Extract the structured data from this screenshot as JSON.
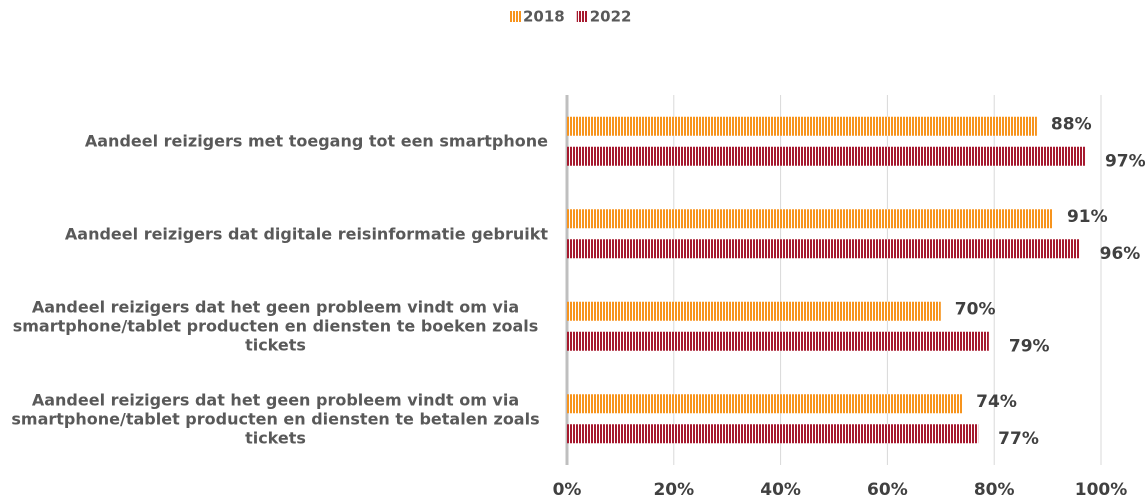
{
  "chart_data": {
    "type": "bar",
    "orientation": "horizontal",
    "categories": [
      "Aandeel reizigers met toegang tot een smartphone",
      "Aandeel reizigers dat digitale reisinformatie gebruikt",
      "Aandeel reizigers dat het geen probleem vindt om via smartphone/tablet producten en diensten te boeken zoals tickets",
      "Aandeel reizigers dat het geen probleem vindt om via smartphone/tablet producten en diensten te betalen zoals tickets"
    ],
    "series": [
      {
        "name": "2018",
        "color": "#f7941d",
        "values": [
          88,
          91,
          70,
          74
        ],
        "value_labels": [
          "88%",
          "91%",
          "70%",
          "74%"
        ]
      },
      {
        "name": "2022",
        "color": "#a6192e",
        "values": [
          97,
          96,
          79,
          77
        ],
        "value_labels": [
          "97%",
          "96%",
          "79%",
          "77%"
        ]
      }
    ],
    "xlim": [
      0,
      100
    ],
    "xticks": [
      {
        "value": 0,
        "label": "0%"
      },
      {
        "value": 20,
        "label": "20%"
      },
      {
        "value": 40,
        "label": "40%"
      },
      {
        "value": 60,
        "label": "60%"
      },
      {
        "value": 80,
        "label": "80%"
      },
      {
        "value": 100,
        "label": "100%"
      }
    ],
    "grid": true,
    "legend": "top"
  }
}
